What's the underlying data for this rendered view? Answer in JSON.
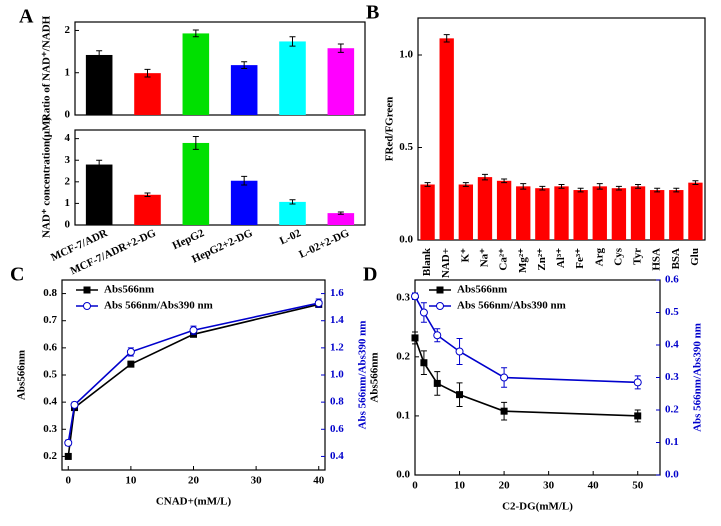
{
  "chart_data": [
    {
      "type": "bar",
      "panel": "A",
      "ylabel": "Ratio of NAD⁺/NADH",
      "values": [
        1.42,
        0.99,
        1.93,
        1.18,
        1.74,
        1.58
      ],
      "errors": [
        0.1,
        0.09,
        0.08,
        0.08,
        0.11,
        0.1
      ],
      "colors": [
        "#000000",
        "#ff0000",
        "#00e000",
        "#0000ff",
        "#00ffff",
        "#ff00ff"
      ],
      "ylim": [
        0,
        2.2
      ],
      "yticks": [
        0,
        1,
        2
      ]
    },
    {
      "type": "bar",
      "ylabel": "NAD⁺ concentration(μM)",
      "categories": [
        "MCF-7/ADR",
        "MCF-7/ADR+2-DG",
        "HepG2",
        "HepG2+2-DG",
        "L-02",
        "L-02+2-DG"
      ],
      "values": [
        2.8,
        1.4,
        3.8,
        2.05,
        1.07,
        0.55
      ],
      "errors": [
        0.2,
        0.08,
        0.3,
        0.2,
        0.1,
        0.05
      ],
      "colors": [
        "#000000",
        "#ff0000",
        "#00e000",
        "#0000ff",
        "#00ffff",
        "#ff00ff"
      ],
      "ylim": [
        0,
        4.4
      ],
      "yticks": [
        0,
        1,
        2,
        3,
        4
      ]
    },
    {
      "type": "bar",
      "panel": "B",
      "ylabel": "FRed/FGreen",
      "categories": [
        "Blank",
        "NAD+",
        "K⁺",
        "Na⁺",
        "Ca²⁺",
        "Mg²⁺",
        "Zn²⁺",
        "Al³⁺",
        "Fe³⁺",
        "Arg",
        "Cys",
        "Tyr",
        "HSA",
        "BSA",
        "Glu"
      ],
      "values": [
        0.3,
        1.09,
        0.3,
        0.34,
        0.32,
        0.29,
        0.28,
        0.29,
        0.27,
        0.29,
        0.28,
        0.29,
        0.27,
        0.27,
        0.31
      ],
      "errors": [
        0.01,
        0.02,
        0.01,
        0.015,
        0.01,
        0.015,
        0.01,
        0.01,
        0.01,
        0.015,
        0.01,
        0.01,
        0.01,
        0.01,
        0.01
      ],
      "color": "#ff0000",
      "ylim": [
        0,
        1.2
      ],
      "yticks": [
        {
          "value": 0,
          "label": "0.0"
        },
        0.5,
        {
          "value": 1,
          "label": "1.0"
        }
      ]
    },
    {
      "type": "dual-line",
      "panel": "C",
      "xlabel": "CNAD+(mM/L)",
      "ylabel": "Abs566nm",
      "y2label": "Abs 566nm/Abs390 nm",
      "x": [
        0,
        1,
        10,
        20,
        40
      ],
      "series": [
        {
          "name": "Abs566nm",
          "color": "#000000",
          "marker": "square",
          "values": [
            0.2,
            0.38,
            0.54,
            0.65,
            0.76
          ],
          "errors": [
            0.01,
            0.01,
            0.01,
            0.01,
            0.01
          ]
        },
        {
          "name": "Abs 566nm/Abs390 nm",
          "color": "#0000cc",
          "marker": "circle",
          "axis": "y2",
          "values": [
            0.5,
            0.78,
            1.17,
            1.33,
            1.53
          ],
          "errors": [
            0.02,
            0.02,
            0.03,
            0.03,
            0.03
          ]
        }
      ],
      "xlim": [
        -1,
        41
      ],
      "xticks": [
        0,
        10,
        20,
        30,
        40
      ],
      "ylim": [
        0.15,
        0.85
      ],
      "yticks": [
        0.2,
        0.3,
        0.4,
        0.5,
        0.6,
        0.7,
        0.8
      ],
      "y2lim": [
        0.3,
        1.7
      ],
      "y2ticks": [
        0.4,
        0.6,
        0.8,
        {
          "value": 1,
          "label": "1.0"
        },
        1.2,
        1.4,
        1.6
      ]
    },
    {
      "type": "dual-line",
      "panel": "D",
      "xlabel": "C2-DG(mM/L)",
      "ylabel": "Abs566nm",
      "y2label": "Abs 566nm/Abs390 nm",
      "x": [
        0,
        2,
        5,
        10,
        20,
        50
      ],
      "series": [
        {
          "name": "Abs566nm",
          "color": "#000000",
          "marker": "square",
          "values": [
            0.232,
            0.19,
            0.155,
            0.136,
            0.108,
            0.1
          ],
          "errors": [
            0.01,
            0.02,
            0.02,
            0.02,
            0.015,
            0.01
          ]
        },
        {
          "name": "Abs 566nm/Abs390 nm",
          "color": "#0000cc",
          "marker": "circle",
          "axis": "y2",
          "values": [
            0.55,
            0.5,
            0.43,
            0.38,
            0.3,
            0.285
          ],
          "errors": [
            0.01,
            0.03,
            0.02,
            0.04,
            0.03,
            0.02
          ]
        }
      ],
      "xlim": [
        0,
        55
      ],
      "xticks": [
        0,
        10,
        20,
        30,
        40,
        50
      ],
      "ylim": [
        0,
        0.33
      ],
      "yticks": [
        {
          "value": 0,
          "label": "0.0"
        },
        0.1,
        0.2,
        0.3
      ],
      "y2lim": [
        0,
        0.6
      ],
      "y2ticks": [
        {
          "value": 0,
          "label": "0.0"
        },
        0.1,
        0.2,
        0.3,
        0.4,
        0.5,
        0.6
      ]
    }
  ]
}
